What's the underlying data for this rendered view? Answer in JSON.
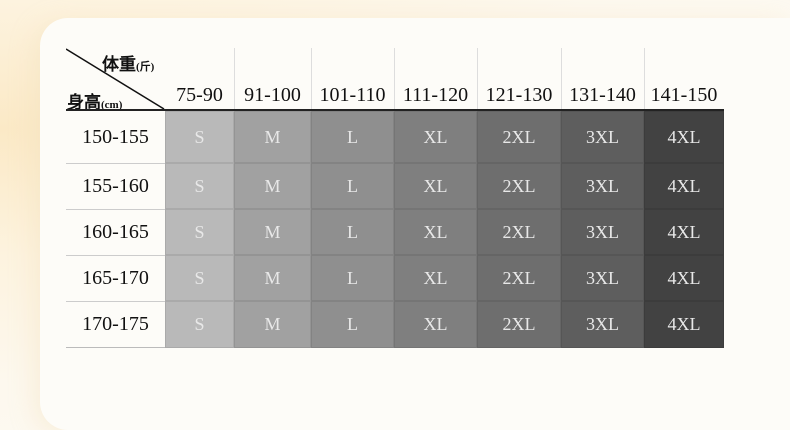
{
  "corner": {
    "weight_label": "体重",
    "weight_unit": "(斤)",
    "height_label": "身高",
    "height_unit": "(cm)"
  },
  "weight_ranges": [
    "75-90",
    "91-100",
    "101-110",
    "111-120",
    "121-130",
    "131-140",
    "141-150"
  ],
  "height_ranges": [
    "150-155",
    "155-160",
    "160-165",
    "165-170",
    "170-175"
  ],
  "sizes": [
    "S",
    "M",
    "L",
    "XL",
    "2XL",
    "3XL",
    "4XL"
  ],
  "size_colors": [
    "#b9b9b9",
    "#a1a1a1",
    "#8f8f8f",
    "#7f7f7f",
    "#6e6e6e",
    "#5e5e5e",
    "#424242"
  ]
}
